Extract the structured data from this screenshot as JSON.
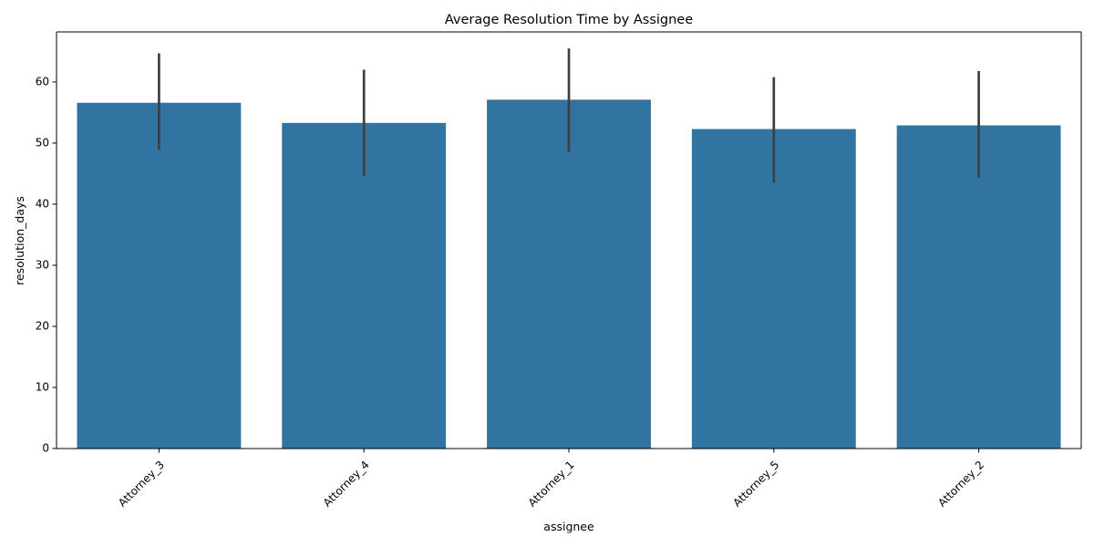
{
  "chart_data": {
    "type": "bar",
    "title": "Average Resolution Time by Assignee",
    "xlabel": "assignee",
    "ylabel": "resolution_days",
    "categories": [
      "Attorney_3",
      "Attorney_4",
      "Attorney_1",
      "Attorney_5",
      "Attorney_2"
    ],
    "values": [
      56.6,
      53.3,
      57.1,
      52.3,
      52.9
    ],
    "error_low": [
      48.9,
      44.6,
      48.5,
      43.5,
      44.3
    ],
    "error_high": [
      64.7,
      62.0,
      65.5,
      60.8,
      61.8
    ],
    "ylim": [
      0,
      68.2
    ],
    "yticks": [
      0,
      10,
      20,
      30,
      40,
      50,
      60
    ],
    "xtick_rotation_deg": 45,
    "grid": false,
    "legend": "none",
    "colors": {
      "bar": "#3274a1",
      "error_bar": "#3f3f3f",
      "axis": "#000000"
    }
  }
}
